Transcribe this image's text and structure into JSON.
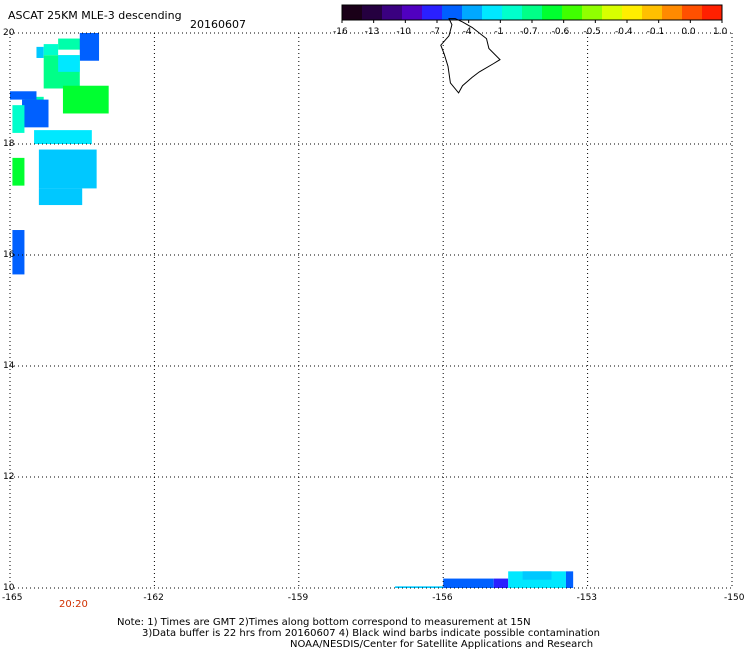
{
  "header": {
    "title": "ASCAT 25KM MLE-3 descending",
    "date": "20160607"
  },
  "colorbar": {
    "ticks": [
      "-16",
      "-13",
      "-10",
      "-7",
      "-4",
      "-1",
      "-0.7",
      "-0.6",
      "-0.5",
      "-0.4",
      "-0.1",
      "0.0",
      "1.0"
    ],
    "colors": [
      "#1a0018",
      "#250040",
      "#3a0080",
      "#5000c0",
      "#2a20ff",
      "#0060ff",
      "#00a8ff",
      "#00e8ff",
      "#00ffcc",
      "#00ff88",
      "#00ff30",
      "#40ff00",
      "#90ff00",
      "#d8ff00",
      "#ffee00",
      "#ffc000",
      "#ff8a00",
      "#ff5000",
      "#ff2000"
    ]
  },
  "map": {
    "lon_range": [
      -165,
      -150
    ],
    "lat_range": [
      10,
      20
    ],
    "lon_ticks": [
      "-165",
      "-162",
      "-159",
      "-156",
      "-153",
      "-150"
    ],
    "lat_ticks": [
      "20",
      "18",
      "16",
      "14",
      "12",
      "10"
    ],
    "time_label": "20:20",
    "cells": [
      {
        "lon": -164.45,
        "lat": 19.55,
        "w": 0.15,
        "h": 0.2,
        "color": "#00c8ff"
      },
      {
        "lon": -164.3,
        "lat": 19.6,
        "w": 0.3,
        "h": 0.2,
        "color": "#00ffcc"
      },
      {
        "lon": -164.0,
        "lat": 19.7,
        "w": 0.5,
        "h": 0.2,
        "color": "#00ffaa"
      },
      {
        "lon": -163.55,
        "lat": 19.5,
        "w": 0.4,
        "h": 0.5,
        "color": "#0060ff"
      },
      {
        "lon": -164.3,
        "lat": 19.0,
        "w": 0.75,
        "h": 0.6,
        "color": "#00ff88"
      },
      {
        "lon": -164.0,
        "lat": 19.3,
        "w": 0.45,
        "h": 0.3,
        "color": "#00e8ff"
      },
      {
        "lon": -163.9,
        "lat": 18.55,
        "w": 0.95,
        "h": 0.5,
        "color": "#00ff30"
      },
      {
        "lon": -164.7,
        "lat": 18.55,
        "w": 0.4,
        "h": 0.3,
        "color": "#00ffaa"
      },
      {
        "lon": -165.0,
        "lat": 18.8,
        "w": 0.55,
        "h": 0.15,
        "color": "#0060ff"
      },
      {
        "lon": -164.75,
        "lat": 18.3,
        "w": 0.55,
        "h": 0.5,
        "color": "#0060ff"
      },
      {
        "lon": -164.95,
        "lat": 18.2,
        "w": 0.25,
        "h": 0.5,
        "color": "#00ffcc"
      },
      {
        "lon": -164.5,
        "lat": 18.0,
        "w": 1.2,
        "h": 0.25,
        "color": "#00e8ff"
      },
      {
        "lon": -164.4,
        "lat": 17.2,
        "w": 1.2,
        "h": 0.7,
        "color": "#00c8ff"
      },
      {
        "lon": -164.4,
        "lat": 16.9,
        "w": 0.9,
        "h": 0.3,
        "color": "#00c8ff"
      },
      {
        "lon": -164.95,
        "lat": 17.25,
        "w": 0.25,
        "h": 0.5,
        "color": "#00ff30"
      },
      {
        "lon": -164.95,
        "lat": 15.65,
        "w": 0.25,
        "h": 0.8,
        "color": "#0060ff"
      },
      {
        "lon": -157.0,
        "lat": 10.0,
        "w": 1.0,
        "h": 0.03,
        "color": "#00c8ff"
      },
      {
        "lon": -156.0,
        "lat": 10.0,
        "w": 1.05,
        "h": 0.17,
        "color": "#0060ff"
      },
      {
        "lon": -154.95,
        "lat": 10.0,
        "w": 0.3,
        "h": 0.17,
        "color": "#2a20ff"
      },
      {
        "lon": -154.65,
        "lat": 10.0,
        "w": 1.2,
        "h": 0.3,
        "color": "#00e8ff"
      },
      {
        "lon": -154.35,
        "lat": 10.15,
        "w": 0.6,
        "h": 0.15,
        "color": "#00c8ff"
      },
      {
        "lon": -153.45,
        "lat": 10.0,
        "w": 0.15,
        "h": 0.3,
        "color": "#0060ff"
      }
    ],
    "island_outline": [
      [
        -155.88,
        20.26
      ],
      [
        -155.82,
        20.15
      ],
      [
        -155.88,
        19.95
      ],
      [
        -156.05,
        19.78
      ],
      [
        -155.98,
        19.62
      ],
      [
        -155.9,
        19.4
      ],
      [
        -155.85,
        19.1
      ],
      [
        -155.68,
        18.92
      ],
      [
        -155.6,
        19.05
      ],
      [
        -155.4,
        19.2
      ],
      [
        -155.25,
        19.3
      ],
      [
        -154.95,
        19.45
      ],
      [
        -154.82,
        19.52
      ],
      [
        -155.05,
        19.72
      ],
      [
        -155.1,
        19.9
      ],
      [
        -155.4,
        20.1
      ],
      [
        -155.6,
        20.2
      ],
      [
        -155.75,
        20.26
      ]
    ]
  },
  "notes": {
    "line1": "Note: 1) Times are GMT 2)Times along bottom correspond to measurement at 15N",
    "line2": "3)Data buffer is 22 hrs from 20160607 4) Black wind barbs indicate possible contamination",
    "line3": "NOAA/NESDIS/Center for Satellite Applications and Research"
  }
}
